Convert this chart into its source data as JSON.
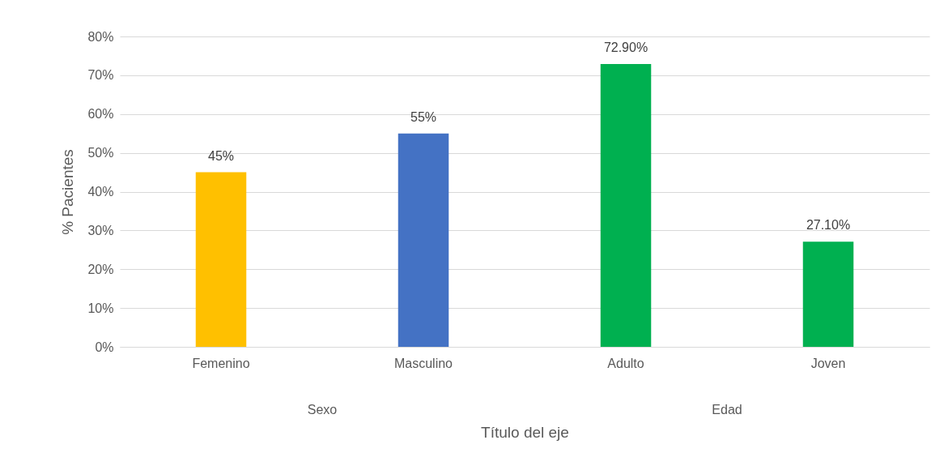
{
  "chart_data": {
    "type": "bar",
    "xlabel": "Título del eje",
    "ylabel": "% Pacientes",
    "categories": [
      "Femenino",
      "Masculino",
      "Adulto",
      "Joven"
    ],
    "values": [
      45,
      55,
      72.9,
      27.1
    ],
    "colors": [
      "#ffc000",
      "#4472c4",
      "#00b050",
      "#00b050"
    ],
    "value_labels": [
      "45%",
      "55%",
      "72.90%",
      "27.10%"
    ],
    "ylim": [
      0,
      80
    ],
    "yticks": [
      {
        "value": 0,
        "label": "0%"
      },
      {
        "value": 10,
        "label": "10%"
      },
      {
        "value": 20,
        "label": "20%"
      },
      {
        "value": 30,
        "label": "30%"
      },
      {
        "value": 40,
        "label": "40%"
      },
      {
        "value": 50,
        "label": "50%"
      },
      {
        "value": 60,
        "label": "60%"
      },
      {
        "value": 70,
        "label": "70%"
      },
      {
        "value": 80,
        "label": "80%"
      }
    ],
    "grid": true,
    "annotations": [
      "Sexo",
      "Edad"
    ]
  }
}
